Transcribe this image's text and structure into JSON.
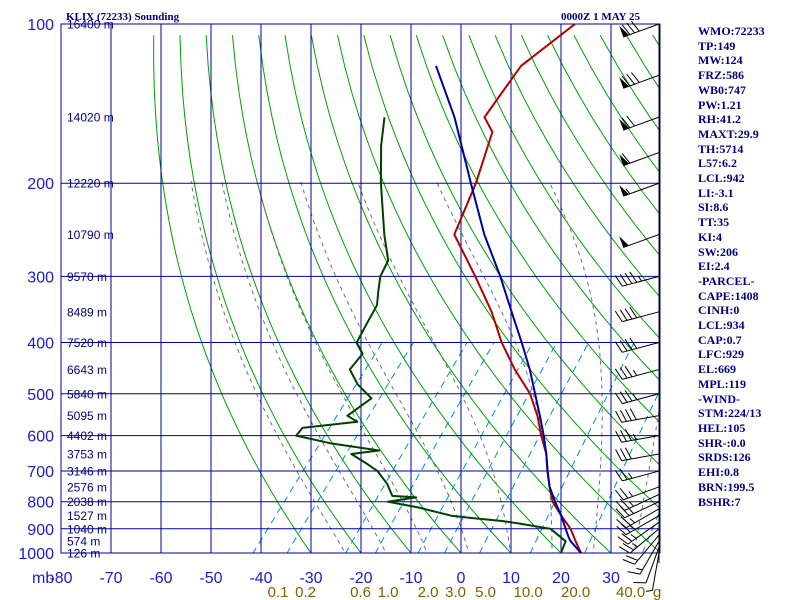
{
  "title_left": "KLIX (72233) Sounding",
  "title_right": "0000Z  1 MAY 25",
  "chart_data": {
    "type": "line",
    "title": "KLIX (72233) Sounding",
    "y_axis": {
      "scale": "log-pressure",
      "unit": "mb",
      "range": [
        1000,
        100
      ],
      "ticks": [
        100,
        200,
        300,
        400,
        500,
        600,
        700,
        800,
        900,
        1000
      ]
    },
    "x_axis": {
      "range": [
        -80,
        40
      ],
      "ticks": [
        "-80",
        "-70",
        "-60",
        "-50",
        "-40",
        "-30",
        "-20",
        "-10",
        "0",
        "10",
        "20",
        "30"
      ]
    },
    "mixing_ratio_labels": [
      {
        "label": "0.1",
        "p": 950,
        "t": -38.5
      },
      {
        "label": "0.2",
        "p": 950,
        "t": -33
      },
      {
        "label": "0.6",
        "p": 950,
        "t": -22
      },
      {
        "label": "1.0",
        "p": 950,
        "t": -16.5
      },
      {
        "label": "2.0",
        "p": 950,
        "t": -8.5
      },
      {
        "label": "3.0",
        "p": 950,
        "t": -3
      },
      {
        "label": "5.0",
        "p": 950,
        "t": 3
      },
      {
        "label": "10.0",
        "p": 950,
        "t": 11.5
      },
      {
        "label": "20.0",
        "p": 950,
        "t": 21
      },
      {
        "label": "40.0",
        "p": 950,
        "t": 32
      }
    ],
    "mixing_ratio_unit": "g",
    "height_labels": [
      {
        "p": 1000,
        "label": "126 m"
      },
      {
        "p": 950,
        "label": "574 m"
      },
      {
        "p": 900,
        "label": "1040 m"
      },
      {
        "p": 850,
        "label": "1527 m"
      },
      {
        "p": 800,
        "label": "2038 m"
      },
      {
        "p": 750,
        "label": "2576 m"
      },
      {
        "p": 700,
        "label": "3146 m"
      },
      {
        "p": 650,
        "label": "3753 m"
      },
      {
        "p": 600,
        "label": "4402 m"
      },
      {
        "p": 550,
        "label": "5095 m"
      },
      {
        "p": 500,
        "label": "5840 m"
      },
      {
        "p": 450,
        "label": "6643 m"
      },
      {
        "p": 400,
        "label": "7520 m"
      },
      {
        "p": 350,
        "label": "8489 m"
      },
      {
        "p": 300,
        "label": "9570 m"
      },
      {
        "p": 250,
        "label": "10790 m"
      },
      {
        "p": 200,
        "label": "12220 m"
      },
      {
        "p": 150,
        "label": "14020 m"
      },
      {
        "p": 100,
        "label": "16400 m"
      }
    ],
    "series": [
      {
        "role": "temperature",
        "color": "#b00000",
        "points": [
          [
            1007,
            26
          ],
          [
            1000,
            24
          ],
          [
            950,
            21
          ],
          [
            900,
            18
          ],
          [
            850,
            14
          ],
          [
            800,
            10
          ],
          [
            750,
            7
          ],
          [
            700,
            4
          ],
          [
            650,
            1
          ],
          [
            600,
            -3
          ],
          [
            550,
            -7
          ],
          [
            500,
            -12
          ],
          [
            450,
            -19
          ],
          [
            400,
            -26
          ],
          [
            350,
            -33
          ],
          [
            300,
            -42
          ],
          [
            250,
            -53
          ],
          [
            200,
            -57
          ],
          [
            160,
            -62
          ],
          [
            150,
            -66
          ],
          [
            120,
            -67
          ],
          [
            100,
            -63
          ]
        ]
      },
      {
        "role": "dewpoint",
        "color": "#004000",
        "points": [
          [
            1000,
            20
          ],
          [
            950,
            19
          ],
          [
            900,
            14
          ],
          [
            880,
            7
          ],
          [
            870,
            3
          ],
          [
            860,
            -3
          ],
          [
            850,
            -8
          ],
          [
            820,
            -16
          ],
          [
            800,
            -23
          ],
          [
            785,
            -18
          ],
          [
            780,
            -23
          ],
          [
            740,
            -26
          ],
          [
            700,
            -30
          ],
          [
            680,
            -33
          ],
          [
            650,
            -38
          ],
          [
            640,
            -33
          ],
          [
            620,
            -44
          ],
          [
            600,
            -52
          ],
          [
            580,
            -52
          ],
          [
            565,
            -42
          ],
          [
            550,
            -45
          ],
          [
            510,
            -43
          ],
          [
            480,
            -48
          ],
          [
            450,
            -52
          ],
          [
            420,
            -52
          ],
          [
            400,
            -55
          ],
          [
            370,
            -56
          ],
          [
            340,
            -57
          ],
          [
            320,
            -59
          ],
          [
            300,
            -61
          ],
          [
            280,
            -62
          ],
          [
            250,
            -67
          ],
          [
            200,
            -76
          ],
          [
            170,
            -82
          ],
          [
            150,
            -86
          ]
        ]
      },
      {
        "role": "parcel",
        "color": "#0000a0",
        "points": [
          [
            1000,
            24
          ],
          [
            950,
            20
          ],
          [
            934,
            19
          ],
          [
            900,
            17
          ],
          [
            850,
            14
          ],
          [
            800,
            10.5
          ],
          [
            750,
            7
          ],
          [
            700,
            4
          ],
          [
            650,
            1
          ],
          [
            600,
            -2.5
          ],
          [
            550,
            -6.5
          ],
          [
            500,
            -11
          ],
          [
            450,
            -16
          ],
          [
            400,
            -22
          ],
          [
            350,
            -29
          ],
          [
            300,
            -37
          ],
          [
            250,
            -47
          ],
          [
            200,
            -58
          ],
          [
            150,
            -72
          ],
          [
            120,
            -84
          ]
        ]
      }
    ],
    "wind_barbs": [
      {
        "p": 1000,
        "dir": 190,
        "speed": 5
      },
      {
        "p": 975,
        "dir": 200,
        "speed": 10
      },
      {
        "p": 950,
        "dir": 210,
        "speed": 15
      },
      {
        "p": 925,
        "dir": 220,
        "speed": 20
      },
      {
        "p": 900,
        "dir": 230,
        "speed": 25
      },
      {
        "p": 875,
        "dir": 235,
        "speed": 25
      },
      {
        "p": 850,
        "dir": 240,
        "speed": 25
      },
      {
        "p": 825,
        "dir": 240,
        "speed": 25
      },
      {
        "p": 800,
        "dir": 245,
        "speed": 25
      },
      {
        "p": 775,
        "dir": 245,
        "speed": 25
      },
      {
        "p": 750,
        "dir": 250,
        "speed": 25
      },
      {
        "p": 700,
        "dir": 255,
        "speed": 25
      },
      {
        "p": 650,
        "dir": 260,
        "speed": 30
      },
      {
        "p": 600,
        "dir": 260,
        "speed": 35
      },
      {
        "p": 550,
        "dir": 260,
        "speed": 40
      },
      {
        "p": 500,
        "dir": 255,
        "speed": 35
      },
      {
        "p": 450,
        "dir": 255,
        "speed": 35
      },
      {
        "p": 400,
        "dir": 255,
        "speed": 40
      },
      {
        "p": 350,
        "dir": 255,
        "speed": 40
      },
      {
        "p": 300,
        "dir": 255,
        "speed": 45
      },
      {
        "p": 250,
        "dir": 250,
        "speed": 50
      },
      {
        "p": 200,
        "dir": 250,
        "speed": 55
      },
      {
        "p": 175,
        "dir": 250,
        "speed": 60
      },
      {
        "p": 150,
        "dir": 250,
        "speed": 70
      },
      {
        "p": 125,
        "dir": 250,
        "speed": 80
      },
      {
        "p": 100,
        "dir": 250,
        "speed": 80
      }
    ]
  },
  "indices": [
    "WMO:72233",
    "TP:149",
    "MW:124",
    "FRZ:586",
    "WB0:747",
    "PW:1.21",
    "RH:41.2",
    "MAXT:29.9",
    "TH:5714",
    "L57:6.2",
    "LCL:942",
    "LI:-3.1",
    "SI:8.6",
    "TT:35",
    "KI:4",
    "SW:206",
    "EI:2.4",
    "-PARCEL-",
    "CAPE:1408",
    "CINH:0",
    "LCL:934",
    "CAP:0.7",
    "LFC:929",
    "EL:669",
    "MPL:119",
    "-WIND-",
    "STM:224/13",
    "HEL:105",
    "SHR-:0.0",
    "SRDS:126",
    "EHI:0.8",
    "BRN:199.5",
    "BSHR:7"
  ],
  "colors": {
    "grid": "#0000a0",
    "dry_adiabat": "#00a000",
    "moist_adiabat": "#707070",
    "mixing_ratio": "#0090d0",
    "axis_text": "#1a1ad0",
    "height_text": "#000080",
    "mixing_text": "#806000",
    "barb": "#000000"
  }
}
